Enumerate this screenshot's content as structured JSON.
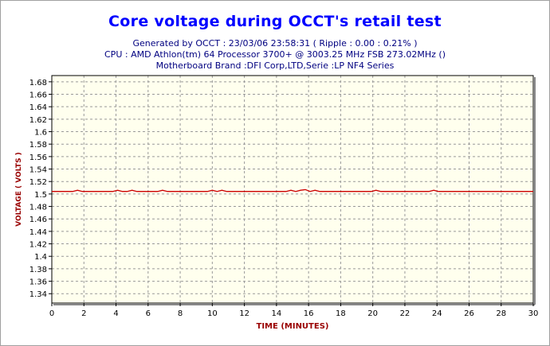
{
  "chart_data": {
    "type": "line",
    "title": "Core voltage during OCCT's retail test",
    "subtitle_lines": [
      "Generated by OCCT : 23/03/06 23:58:31 ( Ripple : 0.00 : 0.21% )",
      "CPU : AMD Athlon(tm) 64 Processor 3700+ @ 3003.25 MHz FSB 273.02MHz ()",
      "Motherboard Brand :DFI Corp,LTD,Serie :LP NF4 Series"
    ],
    "xlabel": "TIME (MINUTES)",
    "ylabel": "VOLTAGE ( VOLTS )",
    "xlim": [
      0,
      30
    ],
    "ylim": [
      1.325,
      1.69
    ],
    "x_ticks": [
      0,
      2,
      4,
      6,
      8,
      10,
      12,
      14,
      16,
      18,
      20,
      22,
      24,
      26,
      28,
      30
    ],
    "y_ticks": [
      "1.34",
      "1.36",
      "1.38",
      "1.4",
      "1.42",
      "1.44",
      "1.46",
      "1.48",
      "1.5",
      "1.52",
      "1.54",
      "1.56",
      "1.58",
      "1.6",
      "1.62",
      "1.64",
      "1.66",
      "1.68"
    ],
    "grid": true,
    "series": [
      {
        "x": [
          0,
          1.3,
          1.6,
          1.9,
          3.8,
          4.1,
          4.4,
          4.7,
          5.0,
          5.3,
          6.6,
          6.9,
          7.2,
          9.7,
          10.0,
          10.3,
          10.6,
          10.9,
          14.6,
          14.9,
          15.2,
          15.5,
          15.8,
          16.1,
          16.4,
          16.7,
          17.0,
          19.9,
          20.2,
          20.5,
          23.5,
          23.8,
          24.1,
          30
        ],
        "y": [
          1.504,
          1.504,
          1.506,
          1.504,
          1.504,
          1.506,
          1.504,
          1.504,
          1.506,
          1.504,
          1.504,
          1.506,
          1.504,
          1.504,
          1.506,
          1.504,
          1.506,
          1.504,
          1.504,
          1.506,
          1.504,
          1.506,
          1.507,
          1.504,
          1.506,
          1.504,
          1.504,
          1.504,
          1.506,
          1.504,
          1.504,
          1.506,
          1.504,
          1.504
        ],
        "color": "#cc0000"
      }
    ],
    "colors": {
      "title": "#0000ff",
      "subtitle": "#000080",
      "axis_label": "#990000",
      "plot_background": "#ffffee",
      "grid": "#999999",
      "line": "#cc0000"
    }
  }
}
